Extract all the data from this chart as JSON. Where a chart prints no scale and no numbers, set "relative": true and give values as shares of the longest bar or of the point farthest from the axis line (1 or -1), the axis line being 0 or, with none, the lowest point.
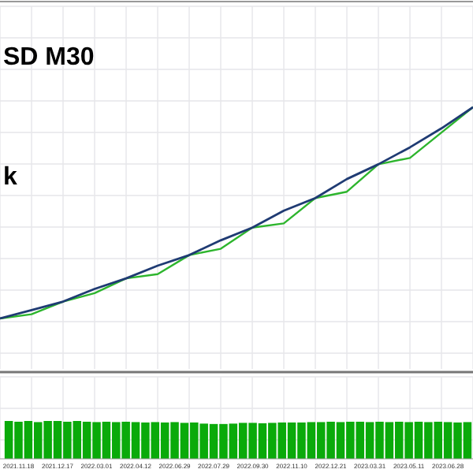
{
  "chart_data": [
    {
      "type": "line",
      "relative": true,
      "grid": true,
      "annotations": [
        "SD M30",
        "k"
      ],
      "categories": [
        null,
        null,
        null,
        null,
        null,
        null,
        null,
        null,
        null,
        null,
        null,
        null,
        null,
        null,
        null,
        null
      ],
      "series": [
        {
          "color": "#1f3b73",
          "values": [
            0,
            0.04,
            0.08,
            0.14,
            0.19,
            0.25,
            0.3,
            0.37,
            0.43,
            0.51,
            0.57,
            0.66,
            0.73,
            0.81,
            0.9,
            1
          ]
        },
        {
          "color": "#2db52d",
          "values": [
            0,
            0.02,
            0.08,
            0.12,
            0.19,
            0.21,
            0.3,
            0.33,
            0.43,
            0.45,
            0.57,
            0.6,
            0.73,
            0.76,
            0.88,
            1
          ]
        }
      ]
    },
    {
      "type": "bar",
      "relative": true,
      "grid": true,
      "color": "#0aaa0a",
      "categories": [
        null,
        "2021.11.18",
        null,
        null,
        null,
        "2021.12.17",
        null,
        null,
        null,
        "2022.03.01",
        null,
        null,
        null,
        "2022.04.12",
        null,
        null,
        null,
        "2022.06.29",
        null,
        null,
        null,
        "2022.07.29",
        null,
        null,
        null,
        "2022.09.30",
        null,
        null,
        null,
        "2022.11.10",
        null,
        null,
        null,
        "2022.12.21",
        null,
        null,
        null,
        "2023.03.31",
        null,
        null,
        null,
        "2023.05.11",
        null,
        null,
        null,
        "2023.06.28",
        null,
        null
      ],
      "values": [
        1,
        0.98,
        1,
        0.97,
        1,
        1,
        0.98,
        1,
        0.98,
        0.97,
        0.98,
        0.97,
        0.98,
        0.97,
        0.96,
        0.97,
        0.96,
        0.97,
        0.95,
        0.96,
        0.93,
        0.92,
        0.92,
        0.93,
        0.95,
        0.95,
        0.94,
        0.95,
        0.96,
        0.96,
        0.96,
        0.97,
        0.97,
        0.98,
        0.97,
        0.98,
        0.98,
        0.97,
        0.98,
        0.97,
        0.98,
        0.97,
        0.98,
        0.97,
        0.98,
        0.97,
        0.96,
        0.97
      ]
    }
  ]
}
